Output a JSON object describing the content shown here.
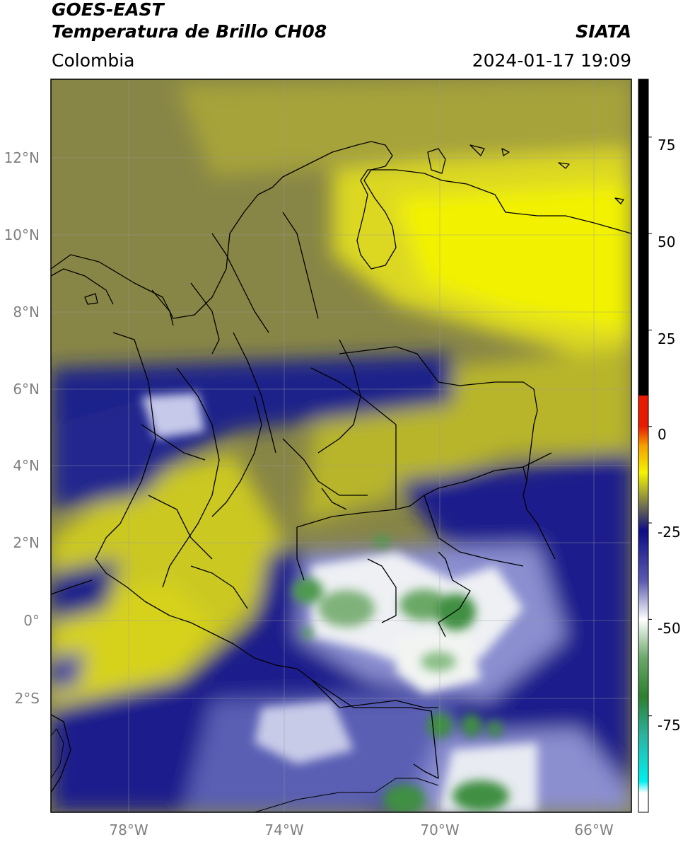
{
  "header": {
    "satellite": "GOES-EAST",
    "product": "Temperatura de Brillo CH08",
    "organization": "SIATA",
    "region": "Colombia",
    "datetime": "2024-01-17 19:09"
  },
  "map": {
    "lat_labels": [
      "12°N",
      "10°N",
      "8°N",
      "6°N",
      "4°N",
      "2°N",
      "0°",
      "2°S"
    ],
    "lon_labels": [
      "78°W",
      "74°W",
      "70°W",
      "66°W"
    ],
    "lat_range": [
      -4.8,
      14.2
    ],
    "lon_range": [
      -80.0,
      -65.0
    ],
    "field_colors": {
      "warm_dry": "#d6d21e",
      "very_dry": "#f2f200",
      "moderate": "#888646",
      "cold_cloud": "#1a1d8c",
      "colder_cloud": "#8b8fd0",
      "very_cold": "#f2f4f2",
      "deep_convection": "#4e9a4e"
    }
  },
  "colorbar": {
    "ticks": [
      "75",
      "50",
      "25",
      "0",
      "-25",
      "-50",
      "-75"
    ],
    "tick_values": [
      75,
      50,
      25,
      0,
      -25,
      -50,
      -75
    ],
    "range": [
      -100,
      90
    ],
    "colors": {
      "top": "#000000",
      "red": "#e81b00",
      "orange": "#f5a000",
      "yellow": "#f4f400",
      "olive": "#7a7a4a",
      "navy": "#0c0c86",
      "white": "#ffffff",
      "green": "#2d7f2d",
      "teal": "#2cb2a0",
      "cyan": "#00f0f0"
    }
  }
}
